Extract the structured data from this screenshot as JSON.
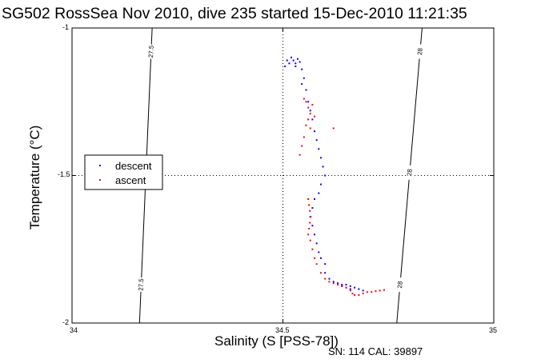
{
  "title": "SG502 RossSea Nov 2010, dive 235 started 15-Dec-2010 11:21:35",
  "footer": "SN: 114  CAL: 39897",
  "chart_data": {
    "type": "scatter",
    "title": "SG502 RossSea Nov 2010, dive 235 started 15-Dec-2010 11:21:35",
    "xlabel": "Salinity (S [PSS-78])",
    "ylabel": "Temperature (°C)",
    "xlim": [
      34,
      35
    ],
    "ylim": [
      -2,
      -1
    ],
    "xticks": [
      "34",
      "34.5",
      "35"
    ],
    "yticks": [
      "-1",
      "-1.5",
      "-2"
    ],
    "grid": "dotted lines at 34.5 and -1.5",
    "legend": {
      "placement": "left",
      "entries": [
        "descent",
        "ascent"
      ]
    },
    "colors": {
      "descent": "#0000ff",
      "ascent": "#ff0000",
      "isopycnal": "#000000"
    },
    "isopycnals": [
      {
        "label": "27.5",
        "points": [
          [
            34.19,
            -1.0
          ],
          [
            34.16,
            -2.0
          ]
        ]
      },
      {
        "label": "28",
        "points": [
          [
            34.83,
            -1.0
          ],
          [
            34.77,
            -2.0
          ]
        ]
      }
    ],
    "series": [
      {
        "name": "descent",
        "points": [
          [
            34.51,
            -1.11
          ],
          [
            34.52,
            -1.1
          ],
          [
            34.525,
            -1.11
          ],
          [
            34.53,
            -1.12
          ],
          [
            34.535,
            -1.105
          ],
          [
            34.54,
            -1.115
          ],
          [
            34.515,
            -1.12
          ],
          [
            34.505,
            -1.13
          ],
          [
            34.53,
            -1.13
          ],
          [
            34.545,
            -1.14
          ],
          [
            34.55,
            -1.17
          ],
          [
            34.545,
            -1.19
          ],
          [
            34.555,
            -1.21
          ],
          [
            34.56,
            -1.25
          ],
          [
            34.565,
            -1.28
          ],
          [
            34.57,
            -1.31
          ],
          [
            34.575,
            -1.35
          ],
          [
            34.58,
            -1.38
          ],
          [
            34.585,
            -1.41
          ],
          [
            34.59,
            -1.44
          ],
          [
            34.595,
            -1.47
          ],
          [
            34.6,
            -1.5
          ],
          [
            34.59,
            -1.53
          ],
          [
            34.585,
            -1.56
          ],
          [
            34.575,
            -1.58
          ],
          [
            34.57,
            -1.61
          ],
          [
            34.565,
            -1.64
          ],
          [
            34.57,
            -1.67
          ],
          [
            34.575,
            -1.7
          ],
          [
            34.58,
            -1.73
          ],
          [
            34.585,
            -1.76
          ],
          [
            34.59,
            -1.78
          ],
          [
            34.6,
            -1.8
          ],
          [
            34.6,
            -1.83
          ],
          [
            34.61,
            -1.85
          ],
          [
            34.62,
            -1.86
          ],
          [
            34.63,
            -1.865
          ],
          [
            34.64,
            -1.87
          ],
          [
            34.65,
            -1.87
          ],
          [
            34.66,
            -1.875
          ],
          [
            34.67,
            -1.88
          ],
          [
            34.68,
            -1.885
          ],
          [
            34.69,
            -1.89
          ],
          [
            34.66,
            -1.885
          ],
          [
            34.65,
            -1.88
          ],
          [
            34.64,
            -1.875
          ]
        ]
      },
      {
        "name": "ascent",
        "points": [
          [
            34.55,
            -1.24
          ],
          [
            34.555,
            -1.25
          ],
          [
            34.56,
            -1.27
          ],
          [
            34.565,
            -1.29
          ],
          [
            34.56,
            -1.31
          ],
          [
            34.555,
            -1.33
          ],
          [
            34.57,
            -1.26
          ],
          [
            34.575,
            -1.3
          ],
          [
            34.565,
            -1.34
          ],
          [
            34.55,
            -1.37
          ],
          [
            34.545,
            -1.4
          ],
          [
            34.54,
            -1.43
          ],
          [
            34.62,
            -1.34
          ],
          [
            34.56,
            -1.58
          ],
          [
            34.562,
            -1.6
          ],
          [
            34.564,
            -1.62
          ],
          [
            34.566,
            -1.64
          ],
          [
            34.564,
            -1.66
          ],
          [
            34.562,
            -1.68
          ],
          [
            34.56,
            -1.7
          ],
          [
            34.565,
            -1.72
          ],
          [
            34.57,
            -1.75
          ],
          [
            34.575,
            -1.78
          ],
          [
            34.58,
            -1.8
          ],
          [
            34.59,
            -1.83
          ],
          [
            34.6,
            -1.85
          ],
          [
            34.61,
            -1.86
          ],
          [
            34.62,
            -1.865
          ],
          [
            34.63,
            -1.87
          ],
          [
            34.64,
            -1.875
          ],
          [
            34.65,
            -1.88
          ],
          [
            34.66,
            -1.89
          ],
          [
            34.665,
            -1.9
          ],
          [
            34.67,
            -1.905
          ],
          [
            34.68,
            -1.905
          ],
          [
            34.69,
            -1.9
          ],
          [
            34.7,
            -1.895
          ],
          [
            34.71,
            -1.895
          ],
          [
            34.72,
            -1.892
          ],
          [
            34.73,
            -1.89
          ],
          [
            34.74,
            -1.888
          ]
        ]
      }
    ]
  }
}
